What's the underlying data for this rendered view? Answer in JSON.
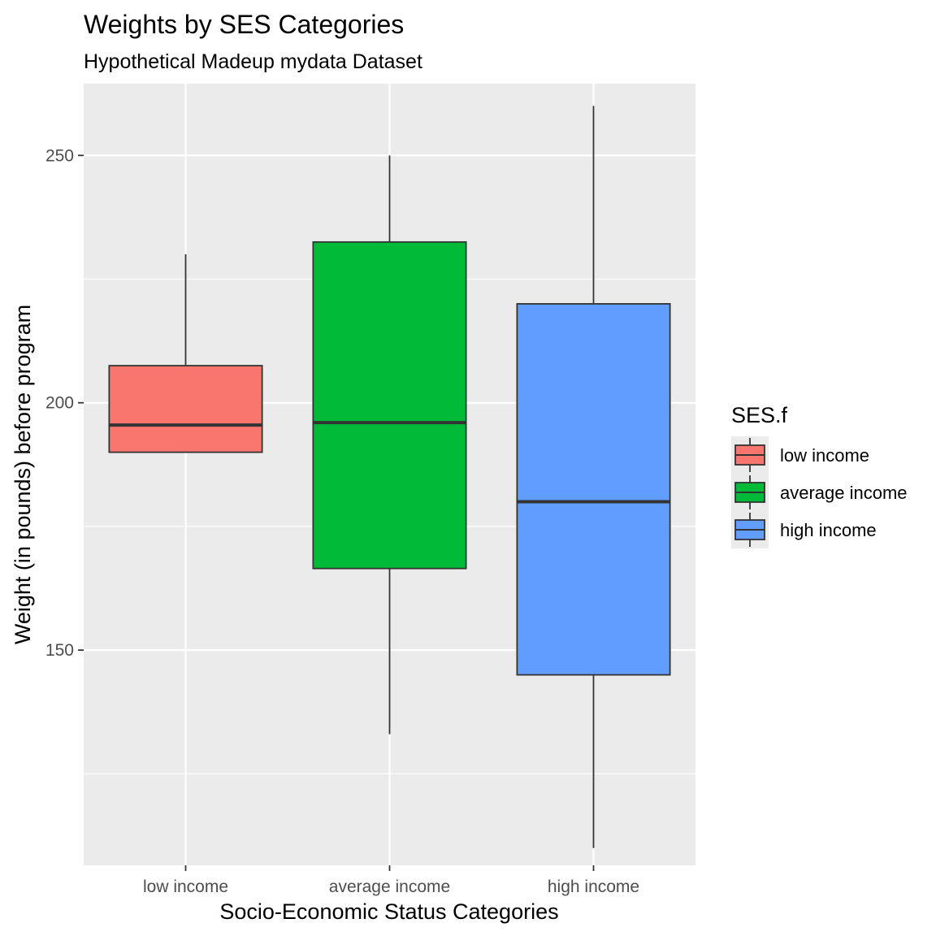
{
  "chart_data": {
    "type": "boxplot",
    "title": "Weights by SES Categories",
    "subtitle": "Hypothetical Madeup mydata Dataset",
    "xlabel": "Socio-Economic Status Categories",
    "ylabel": "Weight (in pounds) before program",
    "ylim": [
      106.5,
      264.5
    ],
    "yticks": [
      150,
      200,
      250
    ],
    "yminor": [
      125,
      175,
      225
    ],
    "categories": [
      "low income",
      "average income",
      "high income"
    ],
    "series": [
      {
        "name": "low income",
        "color": "#F8766D",
        "whisker_low": 190,
        "q1": 190,
        "median": 195.5,
        "q3": 207.5,
        "whisker_high": 230
      },
      {
        "name": "average income",
        "color": "#00BA38",
        "whisker_low": 133,
        "q1": 166.5,
        "median": 196,
        "q3": 232.5,
        "whisker_high": 250
      },
      {
        "name": "high income",
        "color": "#619CFF",
        "whisker_low": 110,
        "q1": 145,
        "median": 180,
        "q3": 220,
        "whisker_high": 260
      }
    ],
    "legend": {
      "title": "SES.f",
      "position": "right",
      "entries": [
        "low income",
        "average income",
        "high income"
      ]
    }
  }
}
